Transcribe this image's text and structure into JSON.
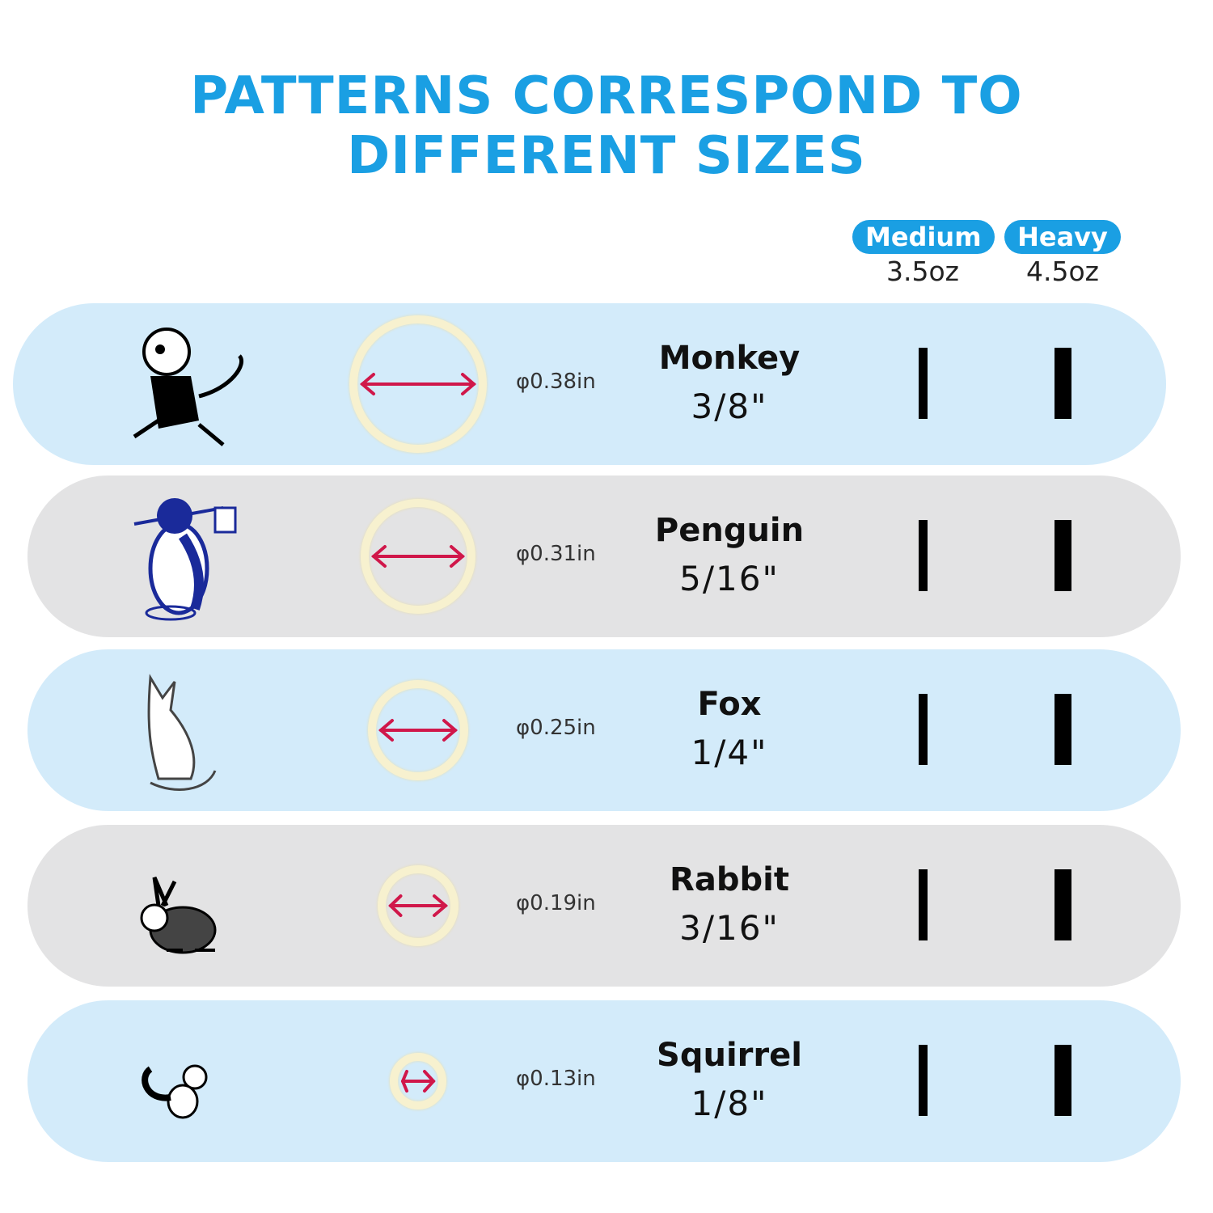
{
  "title_line1": "PATTERNS CORRESPOND TO",
  "title_line2": "DIFFERENT SIZES",
  "columns": [
    {
      "label": "Medium",
      "weight": "3.5oz"
    },
    {
      "label": "Heavy",
      "weight": "4.5oz"
    }
  ],
  "colors": {
    "accent": "#1a9fe3",
    "row_blue": "#d3ebfa",
    "row_grey": "#e3e3e4",
    "arrow": "#d0174a",
    "ring": "#f7f1cf"
  },
  "rows": [
    {
      "animal": "Monkey",
      "icon": "monkey-icon",
      "diameter": "φ0.38in",
      "size": "3/8\""
    },
    {
      "animal": "Penguin",
      "icon": "penguin-icon",
      "diameter": "φ0.31in",
      "size": "5/16\""
    },
    {
      "animal": "Fox",
      "icon": "fox-icon",
      "diameter": "φ0.25in",
      "size": "1/4\""
    },
    {
      "animal": "Rabbit",
      "icon": "rabbit-icon",
      "diameter": "φ0.19in",
      "size": "3/16\""
    },
    {
      "animal": "Squirrel",
      "icon": "squirrel-icon",
      "diameter": "φ0.13in",
      "size": "1/8\""
    }
  ]
}
